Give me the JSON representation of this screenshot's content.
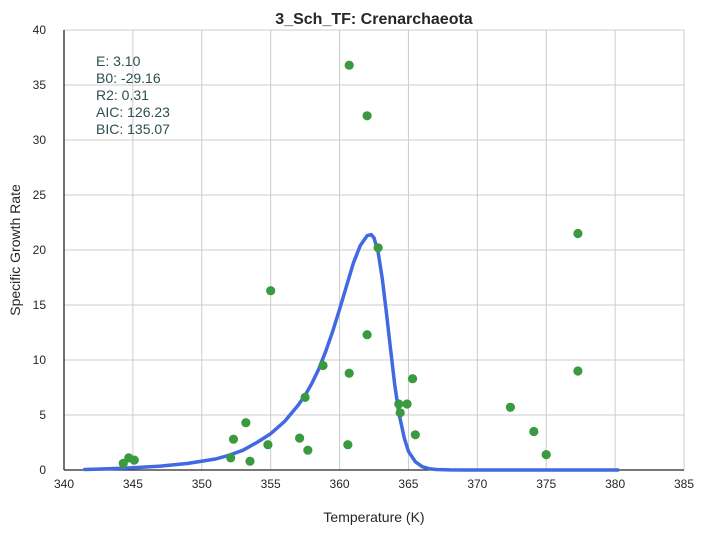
{
  "chart_data": {
    "type": "scatter",
    "title": "3_Sch_TF: Crenarchaeota",
    "xlabel": "Temperature (K)",
    "ylabel": "Specific Growth Rate",
    "xlim": [
      340,
      385
    ],
    "ylim": [
      0,
      40
    ],
    "xticks": [
      340,
      345,
      350,
      355,
      360,
      365,
      370,
      375,
      380,
      385
    ],
    "yticks": [
      0,
      5,
      10,
      15,
      20,
      25,
      30,
      35,
      40
    ],
    "grid": true,
    "annotations": [
      "E:  3.10",
      "B0:  -29.16",
      "R2:  0.31",
      "AIC: 126.23",
      "BIC: 135.07"
    ],
    "colors": {
      "points": "#3a9a3f",
      "curve": "#4169e1",
      "grid": "#cccccc",
      "axis": "#262626",
      "annotation": "#2f4f4f"
    },
    "series": [
      {
        "kind": "scatter",
        "x": [
          344.3,
          344.7,
          345.1,
          352.1,
          352.3,
          353.2,
          353.5,
          354.8,
          355.0,
          357.1,
          357.5,
          357.7,
          358.8,
          360.6,
          360.7,
          360.7,
          362.0,
          362.0,
          362.8,
          364.3,
          364.4,
          364.9,
          365.3,
          365.5,
          372.4,
          374.1,
          375.0,
          377.3,
          377.3
        ],
        "y": [
          0.6,
          1.1,
          0.9,
          1.1,
          2.8,
          4.3,
          0.8,
          2.3,
          16.3,
          2.9,
          6.6,
          1.8,
          9.5,
          2.3,
          8.8,
          36.8,
          12.3,
          32.2,
          20.2,
          6.0,
          5.2,
          6.0,
          8.3,
          3.2,
          5.7,
          3.5,
          1.4,
          21.5,
          9.0
        ]
      },
      {
        "kind": "line",
        "x": [
          341.5,
          343,
          345,
          347,
          349,
          351,
          352,
          353,
          354,
          355,
          356,
          357,
          357.5,
          358,
          358.5,
          359,
          359.5,
          360,
          360.5,
          361,
          361.5,
          362,
          362.3,
          362.5,
          362.8,
          363.1,
          363.4,
          363.7,
          364,
          364.3,
          364.7,
          365,
          365.5,
          366,
          366.5,
          367,
          368,
          369,
          370,
          372,
          375,
          380.2
        ],
        "y": [
          0.05,
          0.1,
          0.2,
          0.35,
          0.6,
          1.0,
          1.35,
          1.8,
          2.5,
          3.3,
          4.4,
          5.9,
          6.8,
          7.9,
          9.2,
          10.8,
          12.6,
          14.6,
          16.7,
          18.8,
          20.4,
          21.3,
          21.4,
          21.1,
          19.8,
          17.4,
          14.3,
          11.0,
          7.8,
          5.2,
          2.9,
          1.7,
          0.75,
          0.3,
          0.12,
          0.05,
          0.01,
          0,
          0,
          0,
          0,
          0
        ]
      }
    ]
  }
}
